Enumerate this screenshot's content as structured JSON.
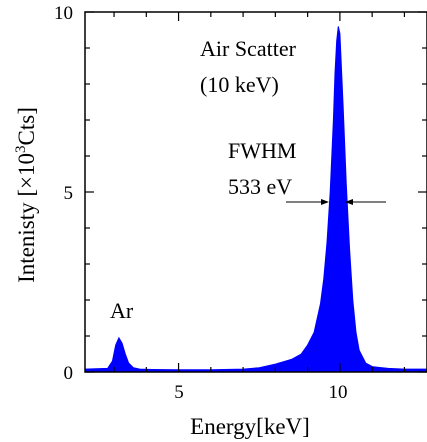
{
  "chart_data": {
    "type": "area",
    "xlabel": "Energy[keV]",
    "ylabel": {
      "prefix": "Intenisty [",
      "times": "×",
      "base": "10",
      "exponent": "3",
      "suffix": "Cts]"
    },
    "xlim": [
      2.1,
      12.7
    ],
    "ylim": [
      0,
      10
    ],
    "x_ticks": [
      5,
      10
    ],
    "y_ticks": [
      0,
      5,
      10
    ],
    "series": [
      {
        "color": "#0000ff",
        "x": [
          2.1,
          2.8,
          2.95,
          3.05,
          3.15,
          3.25,
          3.35,
          3.45,
          3.6,
          3.8,
          4.2,
          5,
          6,
          7,
          7.5,
          8.0,
          8.5,
          8.8,
          9.0,
          9.2,
          9.4,
          9.5,
          9.6,
          9.7,
          9.8,
          9.85,
          9.9,
          9.95,
          10.0,
          10.1,
          10.2,
          10.3,
          10.4,
          10.5,
          10.6,
          10.8,
          11.0,
          11.5,
          12,
          12.7
        ],
        "y": [
          0.08,
          0.1,
          0.3,
          0.75,
          0.95,
          0.8,
          0.5,
          0.25,
          0.12,
          0.08,
          0.07,
          0.06,
          0.06,
          0.08,
          0.12,
          0.22,
          0.35,
          0.5,
          0.75,
          1.1,
          1.9,
          2.6,
          3.6,
          5.0,
          7.0,
          8.3,
          9.2,
          9.6,
          9.4,
          7.4,
          5.2,
          3.4,
          2.0,
          1.1,
          0.6,
          0.25,
          0.15,
          0.1,
          0.08,
          0.08
        ]
      }
    ],
    "annotations": {
      "peak_label_1": "Air Scatter",
      "peak_label_2": "(10 keV)",
      "fwhm_label_1": "FWHM",
      "fwhm_label_2": "533 eV",
      "ar_label": "Ar"
    }
  }
}
